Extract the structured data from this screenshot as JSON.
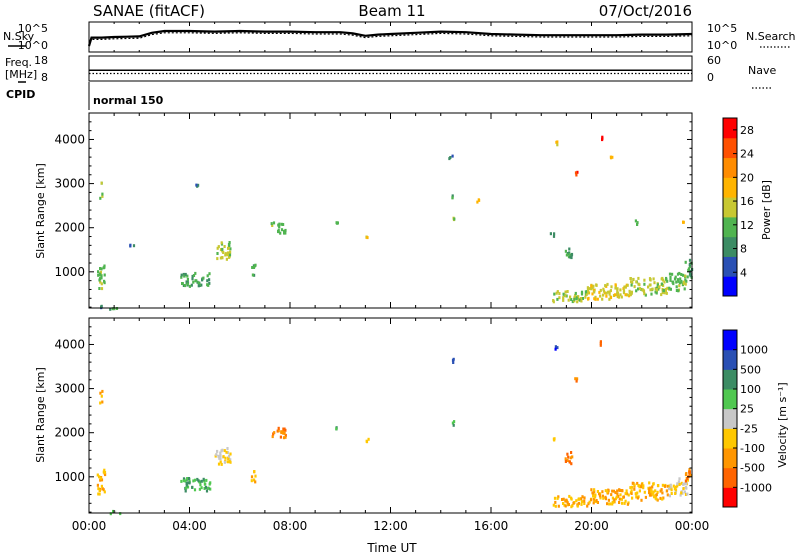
{
  "header": {
    "station": "SANAE (fitACF)",
    "beam": "Beam 11",
    "date": "07/Oct/2016"
  },
  "strip_labels": {
    "nsky": "N.Sky",
    "nsearch": "N.Search",
    "freq_line1": "Freq.",
    "freq_line2": "[MHz]",
    "nave": "Nave",
    "cpid": "CPID",
    "cpid_value": "normal 150"
  },
  "strip_ticks": {
    "noise_left": [
      "10^5",
      "10^0"
    ],
    "noise_right": [
      "10^5",
      "10^0"
    ],
    "freq_left": [
      "18",
      "8"
    ],
    "nave_right": [
      "60",
      "0"
    ]
  },
  "colors": {
    "power_scale": [
      "#0000ff",
      "#2a50b4",
      "#3c8c64",
      "#50b450",
      "#c8c832",
      "#ffb400",
      "#ff8c00",
      "#ff5000",
      "#ff0000"
    ],
    "velocity_scale": [
      "#ff0000",
      "#ff6400",
      "#ff9600",
      "#ffc800",
      "#c8c8c8",
      "#50c850",
      "#3c8c64",
      "#2a50b4",
      "#0000ff"
    ]
  },
  "chart_data": [
    {
      "type": "line",
      "title": "SANAE (fitACF)",
      "panel": "noise",
      "series": [
        {
          "name": "N.Sky",
          "x": [
            0.0,
            0.1,
            0.5,
            1.0,
            2.0,
            2.5,
            3.0,
            4.0,
            5.0,
            6.0,
            7.0,
            8.0,
            9.0,
            10.0,
            10.5,
            11.0,
            11.5,
            12.0,
            13.0,
            14.0,
            15.0,
            16.0,
            17.0,
            18.0,
            19.0,
            20.0,
            21.0,
            22.0,
            23.0,
            24.0
          ],
          "y": [
            1.0,
            2.4,
            2.4,
            2.5,
            2.6,
            3.2,
            3.5,
            3.5,
            3.4,
            3.5,
            3.4,
            3.4,
            3.3,
            3.3,
            3.1,
            2.7,
            2.9,
            3.0,
            3.2,
            3.4,
            3.3,
            3.0,
            2.9,
            2.8,
            2.8,
            2.8,
            2.8,
            2.9,
            2.9,
            3.0
          ]
        },
        {
          "name": "N.Search",
          "x": [
            0.0,
            0.1,
            0.5,
            1.0,
            2.0,
            2.5,
            3.0,
            4.0,
            5.0,
            6.0,
            7.0,
            8.0,
            9.0,
            10.0,
            10.5,
            11.0,
            11.5,
            12.0,
            13.0,
            14.0,
            15.0,
            16.0,
            17.0,
            18.0,
            19.0,
            20.0,
            21.0,
            22.0,
            23.0,
            24.0
          ],
          "y": [
            1.0,
            2.1,
            2.1,
            2.2,
            2.3,
            2.9,
            3.2,
            3.2,
            3.1,
            3.2,
            3.1,
            3.1,
            3.0,
            3.0,
            2.8,
            2.4,
            2.6,
            2.7,
            2.9,
            3.1,
            3.0,
            2.7,
            2.6,
            2.5,
            2.5,
            2.5,
            2.5,
            2.6,
            2.6,
            2.7
          ]
        }
      ],
      "ylabel": "N.Sky",
      "ylim": [
        0,
        5
      ],
      "xlim": [
        0,
        24
      ]
    },
    {
      "type": "line",
      "panel": "frequency",
      "series": [
        {
          "name": "Freq.",
          "x": [
            0.0,
            24.0
          ],
          "y": [
            12.3,
            12.3
          ]
        },
        {
          "name": "Nave",
          "x": [
            0.0,
            24.0
          ],
          "y": [
            18,
            18
          ]
        }
      ],
      "ylabel": "Freq. [MHz]",
      "ylim": [
        8,
        18
      ],
      "xlim": [
        0,
        24
      ]
    },
    {
      "type": "heatmap",
      "panel": "power",
      "ylabel": "Slant Range [km]",
      "ylim": [
        180,
        4600
      ],
      "xlim": [
        0,
        24
      ],
      "x_ticks": [
        "00:00",
        "04:00",
        "08:00",
        "12:00",
        "16:00",
        "20:00",
        "00:00"
      ],
      "y_ticks": [
        1000,
        2000,
        3000,
        4000
      ],
      "colorbar": {
        "label": "Power [dB]",
        "ticks": [
          4,
          8,
          12,
          16,
          20,
          24,
          28
        ],
        "range": [
          0,
          30
        ]
      },
      "clusters": [
        {
          "x0": 0.8,
          "x1": 1.3,
          "r0": 180,
          "r1": 250,
          "value": 10
        },
        {
          "x0": 0.3,
          "x1": 0.5,
          "r0": 200,
          "r1": 270,
          "value": 8
        },
        {
          "x0": 0.3,
          "x1": 0.6,
          "r0": 600,
          "r1": 1200,
          "value": 12
        },
        {
          "x0": 0.4,
          "x1": 0.5,
          "r0": 2700,
          "r1": 3100,
          "value": 12
        },
        {
          "x0": 1.6,
          "x1": 1.8,
          "r0": 1600,
          "r1": 1650,
          "value": 6
        },
        {
          "x0": 3.6,
          "x1": 4.8,
          "r0": 700,
          "r1": 1000,
          "value": 10
        },
        {
          "x0": 4.2,
          "x1": 4.3,
          "r0": 2950,
          "r1": 3000,
          "value": 8
        },
        {
          "x0": 5.0,
          "x1": 5.6,
          "r0": 1300,
          "r1": 1700,
          "value": 14
        },
        {
          "x0": 6.4,
          "x1": 6.6,
          "r0": 900,
          "r1": 1200,
          "value": 10
        },
        {
          "x0": 7.2,
          "x1": 7.8,
          "r0": 1900,
          "r1": 2150,
          "value": 12
        },
        {
          "x0": 9.8,
          "x1": 9.9,
          "r0": 2100,
          "r1": 2150,
          "value": 12
        },
        {
          "x0": 11.0,
          "x1": 11.1,
          "r0": 1800,
          "r1": 1900,
          "value": 16
        },
        {
          "x0": 14.3,
          "x1": 14.5,
          "r0": 3600,
          "r1": 3700,
          "value": 8
        },
        {
          "x0": 14.4,
          "x1": 14.5,
          "r0": 2700,
          "r1": 2800,
          "value": 10
        },
        {
          "x0": 14.4,
          "x1": 14.5,
          "r0": 2200,
          "r1": 2300,
          "value": 14
        },
        {
          "x0": 15.4,
          "x1": 15.5,
          "r0": 2600,
          "r1": 2700,
          "value": 18
        },
        {
          "x0": 18.3,
          "x1": 18.5,
          "r0": 1800,
          "r1": 1900,
          "value": 8
        },
        {
          "x0": 18.9,
          "x1": 19.2,
          "r0": 1300,
          "r1": 1600,
          "value": 10
        },
        {
          "x0": 18.4,
          "x1": 19.8,
          "r0": 350,
          "r1": 600,
          "value": 14
        },
        {
          "x0": 19.8,
          "x1": 21.5,
          "r0": 400,
          "r1": 750,
          "value": 16
        },
        {
          "x0": 21.5,
          "x1": 23.0,
          "r0": 500,
          "r1": 900,
          "value": 14
        },
        {
          "x0": 23.0,
          "x1": 23.8,
          "r0": 600,
          "r1": 1000,
          "value": 12
        },
        {
          "x0": 23.7,
          "x1": 24.0,
          "r0": 900,
          "r1": 1300,
          "value": 10
        },
        {
          "x0": 19.3,
          "x1": 19.4,
          "r0": 3200,
          "r1": 3300,
          "value": 26
        },
        {
          "x0": 20.3,
          "x1": 20.4,
          "r0": 4000,
          "r1": 4100,
          "value": 28
        },
        {
          "x0": 20.7,
          "x1": 20.8,
          "r0": 3600,
          "r1": 3700,
          "value": 18
        },
        {
          "x0": 18.5,
          "x1": 18.6,
          "r0": 3900,
          "r1": 4000,
          "value": 16
        },
        {
          "x0": 21.7,
          "x1": 21.8,
          "r0": 2100,
          "r1": 2200,
          "value": 12
        },
        {
          "x0": 23.6,
          "x1": 23.7,
          "r0": 2100,
          "r1": 2200,
          "value": 18
        }
      ]
    },
    {
      "type": "heatmap",
      "panel": "velocity",
      "ylabel": "Slant Range [km]",
      "xlabel": "Time UT",
      "ylim": [
        180,
        4600
      ],
      "xlim": [
        0,
        24
      ],
      "x_ticks": [
        "00:00",
        "04:00",
        "08:00",
        "12:00",
        "16:00",
        "20:00",
        "00:00"
      ],
      "y_ticks": [
        1000,
        2000,
        3000,
        4000
      ],
      "colorbar": {
        "label": "Velocity [m s⁻¹]",
        "ticks": [
          "1000",
          "500",
          "100",
          "25",
          "-25",
          "-100",
          "-500",
          "-1000"
        ]
      },
      "clusters": [
        {
          "x0": 0.8,
          "x1": 1.3,
          "r0": 180,
          "r1": 250,
          "value": 25
        },
        {
          "x0": 0.3,
          "x1": 0.6,
          "r0": 600,
          "r1": 1200,
          "value": -100
        },
        {
          "x0": 0.4,
          "x1": 0.5,
          "r0": 2700,
          "r1": 3100,
          "value": -100
        },
        {
          "x0": 3.6,
          "x1": 4.8,
          "r0": 700,
          "r1": 1000,
          "value": 100
        },
        {
          "x0": 5.0,
          "x1": 5.6,
          "r0": 1300,
          "r1": 1700,
          "value": -25
        },
        {
          "x0": 6.4,
          "x1": 6.6,
          "r0": 900,
          "r1": 1200,
          "value": -100
        },
        {
          "x0": 7.2,
          "x1": 7.8,
          "r0": 1900,
          "r1": 2150,
          "value": -500
        },
        {
          "x0": 9.8,
          "x1": 9.9,
          "r0": 2100,
          "r1": 2150,
          "value": 100
        },
        {
          "x0": 11.0,
          "x1": 11.1,
          "r0": 1800,
          "r1": 1900,
          "value": -100
        },
        {
          "x0": 14.3,
          "x1": 14.5,
          "r0": 3600,
          "r1": 3700,
          "value": 500
        },
        {
          "x0": 14.4,
          "x1": 14.5,
          "r0": 2200,
          "r1": 2300,
          "value": 100
        },
        {
          "x0": 18.3,
          "x1": 18.5,
          "r0": 1800,
          "r1": 1900,
          "value": -100
        },
        {
          "x0": 18.9,
          "x1": 19.2,
          "r0": 1300,
          "r1": 1600,
          "value": -500
        },
        {
          "x0": 18.4,
          "x1": 19.8,
          "r0": 350,
          "r1": 600,
          "value": -100
        },
        {
          "x0": 19.8,
          "x1": 21.5,
          "r0": 400,
          "r1": 750,
          "value": -100
        },
        {
          "x0": 21.5,
          "x1": 23.0,
          "r0": 500,
          "r1": 900,
          "value": -100
        },
        {
          "x0": 23.0,
          "x1": 23.8,
          "r0": 600,
          "r1": 1000,
          "value": -25
        },
        {
          "x0": 23.7,
          "x1": 24.0,
          "r0": 900,
          "r1": 1300,
          "value": -500
        },
        {
          "x0": 19.3,
          "x1": 19.4,
          "r0": 3200,
          "r1": 3300,
          "value": -500
        },
        {
          "x0": 20.3,
          "x1": 20.4,
          "r0": 4000,
          "r1": 4100,
          "value": -500
        },
        {
          "x0": 18.5,
          "x1": 18.6,
          "r0": 3900,
          "r1": 4000,
          "value": 1000
        }
      ]
    }
  ]
}
